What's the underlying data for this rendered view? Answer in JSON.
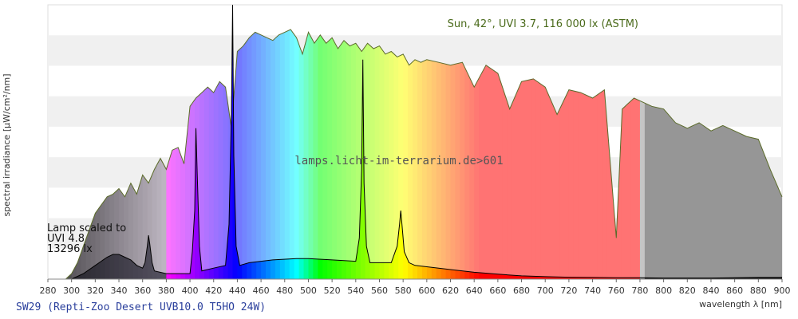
{
  "chart_data": {
    "type": "area",
    "xlabel": "wavelength λ [nm]",
    "ylabel": "spectral irradiance [µW/cm²/nm]",
    "xlim": [
      280,
      900
    ],
    "ylim": [
      0,
      1
    ],
    "x_ticks": [
      "280",
      "300",
      "320",
      "340",
      "360",
      "380",
      "400",
      "420",
      "440",
      "460",
      "480",
      "500",
      "520",
      "540",
      "560",
      "580",
      "600",
      "620",
      "640",
      "660",
      "680",
      "700",
      "720",
      "740",
      "760",
      "780",
      "800",
      "820",
      "840",
      "860",
      "880",
      "900"
    ],
    "grid": "horizontal",
    "annotation_sun": "Sun, 42°, UVI 3.7, 116 000 lx (ASTM)",
    "annotation_url": "lamps.licht-im-terrarium.de>601",
    "lamp_label_lines": [
      "Lamp scaled to",
      "UVI 4.8",
      "13296 lx"
    ],
    "footer": "SW29 (Repti-Zoo Desert UVB10.0 T5HO 24W)",
    "series": [
      {
        "name": "Sun, 42°, UVI 3.7, 116 000 lx (ASTM)",
        "color": "#5b6b2a",
        "x": [
          295,
          300,
          305,
          310,
          315,
          320,
          325,
          330,
          335,
          340,
          345,
          350,
          355,
          360,
          365,
          370,
          375,
          380,
          385,
          390,
          395,
          400,
          405,
          410,
          415,
          420,
          425,
          430,
          435,
          440,
          445,
          450,
          455,
          460,
          465,
          470,
          475,
          480,
          485,
          490,
          495,
          500,
          505,
          510,
          515,
          520,
          525,
          530,
          535,
          540,
          545,
          550,
          555,
          560,
          565,
          570,
          575,
          580,
          585,
          590,
          595,
          600,
          610,
          620,
          630,
          640,
          650,
          660,
          670,
          680,
          690,
          700,
          710,
          720,
          730,
          740,
          750,
          760,
          765,
          770,
          775,
          780,
          790,
          800,
          810,
          820,
          830,
          840,
          850,
          860,
          870,
          880,
          890,
          900
        ],
        "y": [
          0.0,
          0.02,
          0.06,
          0.12,
          0.18,
          0.24,
          0.27,
          0.3,
          0.31,
          0.33,
          0.3,
          0.35,
          0.31,
          0.38,
          0.35,
          0.4,
          0.44,
          0.4,
          0.47,
          0.48,
          0.42,
          0.63,
          0.66,
          0.68,
          0.7,
          0.68,
          0.72,
          0.7,
          0.55,
          0.83,
          0.85,
          0.88,
          0.9,
          0.89,
          0.88,
          0.87,
          0.89,
          0.9,
          0.91,
          0.88,
          0.82,
          0.9,
          0.86,
          0.89,
          0.86,
          0.88,
          0.84,
          0.87,
          0.85,
          0.86,
          0.83,
          0.86,
          0.84,
          0.85,
          0.82,
          0.83,
          0.81,
          0.82,
          0.78,
          0.8,
          0.79,
          0.8,
          0.79,
          0.78,
          0.79,
          0.7,
          0.78,
          0.75,
          0.62,
          0.72,
          0.73,
          0.7,
          0.6,
          0.69,
          0.68,
          0.66,
          0.69,
          0.15,
          0.62,
          0.64,
          0.66,
          0.65,
          0.63,
          0.62,
          0.57,
          0.55,
          0.57,
          0.54,
          0.56,
          0.54,
          0.52,
          0.51,
          0.4,
          0.3
        ]
      },
      {
        "name": "SW29 (Repti-Zoo Desert UVB10.0 T5HO 24W)",
        "color": "#000000",
        "x": [
          300,
          310,
          320,
          330,
          335,
          340,
          345,
          350,
          355,
          360,
          362,
          364,
          365,
          366,
          368,
          370,
          380,
          390,
          400,
          402,
          404,
          405,
          406,
          408,
          410,
          420,
          430,
          433,
          435,
          436,
          437,
          439,
          442,
          450,
          470,
          490,
          500,
          520,
          540,
          543,
          545,
          546,
          547,
          549,
          552,
          560,
          570,
          575,
          577,
          578,
          579,
          581,
          585,
          590,
          600,
          620,
          640,
          660,
          680,
          700,
          720,
          740,
          760,
          780,
          800,
          820,
          840,
          860,
          880,
          900
        ],
        "y": [
          0.0,
          0.02,
          0.05,
          0.08,
          0.09,
          0.09,
          0.08,
          0.07,
          0.05,
          0.04,
          0.06,
          0.12,
          0.16,
          0.13,
          0.06,
          0.03,
          0.02,
          0.02,
          0.02,
          0.1,
          0.25,
          0.55,
          0.4,
          0.12,
          0.03,
          0.04,
          0.05,
          0.2,
          0.6,
          1.0,
          0.45,
          0.12,
          0.05,
          0.06,
          0.07,
          0.075,
          0.075,
          0.07,
          0.065,
          0.15,
          0.4,
          0.8,
          0.35,
          0.12,
          0.06,
          0.06,
          0.06,
          0.12,
          0.2,
          0.25,
          0.2,
          0.1,
          0.06,
          0.05,
          0.045,
          0.035,
          0.025,
          0.018,
          0.012,
          0.009,
          0.007,
          0.006,
          0.005,
          0.005,
          0.004,
          0.004,
          0.004,
          0.005,
          0.006,
          0.006
        ]
      }
    ]
  }
}
